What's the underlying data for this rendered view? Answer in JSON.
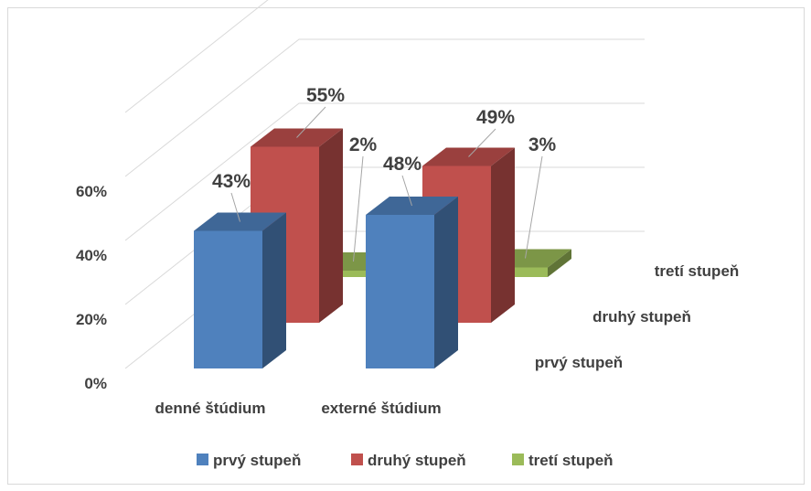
{
  "chart_data": {
    "type": "bar",
    "view": "3d-clustered-depth",
    "categories": [
      "denné štúdium",
      "externé štúdium"
    ],
    "series": [
      {
        "name": "prvý stupeň",
        "values": [
          43,
          48
        ],
        "labels": [
          "43%",
          "48%"
        ],
        "color": "#4f81bd"
      },
      {
        "name": "druhý stupeň",
        "values": [
          55,
          49
        ],
        "labels": [
          "55%",
          "49%"
        ],
        "color": "#c0504d"
      },
      {
        "name": "tretí stupeň",
        "values": [
          2,
          3
        ],
        "labels": [
          "2%",
          "3%"
        ],
        "color": "#9bbb59"
      }
    ],
    "y_ticks": [
      "0%",
      "20%",
      "40%",
      "60%"
    ],
    "ylim": [
      0,
      80
    ],
    "grid": true,
    "legend": "bottom",
    "depth_axis_labels": [
      "prvý stupeň",
      "druhý stupeň",
      "tretí stupeň"
    ]
  }
}
